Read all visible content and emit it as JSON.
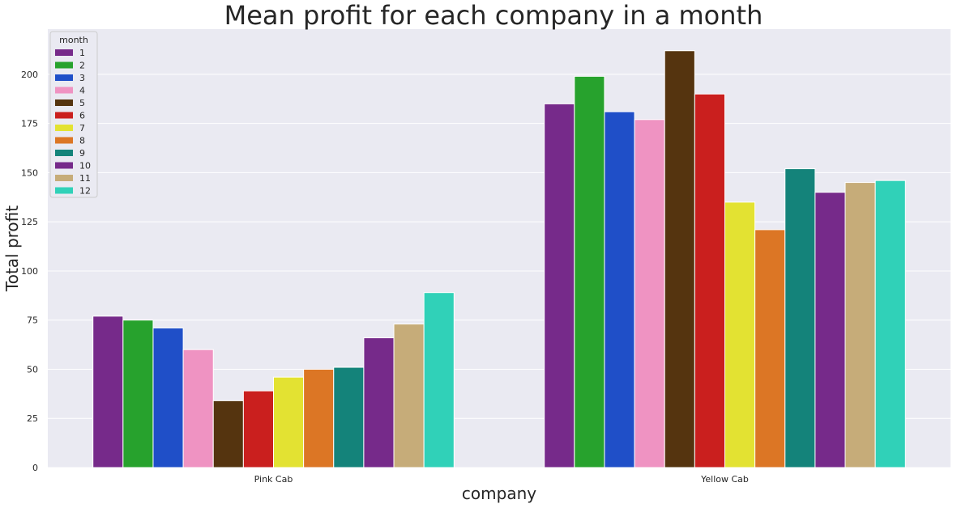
{
  "chart_data": {
    "type": "bar",
    "title": "Mean profit for each company in a month",
    "xlabel": "company",
    "ylabel": "Total profit",
    "categories": [
      "Pink Cab",
      "Yellow Cab"
    ],
    "legend_title": "month",
    "legend_position": "top-left",
    "grid": true,
    "ylim": [
      0,
      223
    ],
    "yticks": [
      0,
      25,
      50,
      75,
      100,
      125,
      150,
      175,
      200
    ],
    "series": [
      {
        "name": "1",
        "color": "#762A8A",
        "values": [
          77,
          185
        ]
      },
      {
        "name": "2",
        "color": "#27A22D",
        "values": [
          75,
          199
        ]
      },
      {
        "name": "3",
        "color": "#1F4FC8",
        "values": [
          71,
          181
        ]
      },
      {
        "name": "4",
        "color": "#EF93C2",
        "values": [
          60,
          177
        ]
      },
      {
        "name": "5",
        "color": "#55340F",
        "values": [
          34,
          212
        ]
      },
      {
        "name": "6",
        "color": "#CA1F1E",
        "values": [
          39,
          190
        ]
      },
      {
        "name": "7",
        "color": "#E3E232",
        "values": [
          46,
          135
        ]
      },
      {
        "name": "8",
        "color": "#DC7625",
        "values": [
          50,
          121
        ]
      },
      {
        "name": "9",
        "color": "#14837A",
        "values": [
          51,
          152
        ]
      },
      {
        "name": "10",
        "color": "#762A8A",
        "values": [
          66,
          140
        ]
      },
      {
        "name": "11",
        "color": "#C6AC79",
        "values": [
          73,
          145
        ]
      },
      {
        "name": "12",
        "color": "#30D1B8",
        "values": [
          89,
          146
        ]
      }
    ]
  },
  "style": {
    "plot_background": "#EAEAF2",
    "grid_color": "#FFFFFF",
    "text_color": "#262626"
  }
}
